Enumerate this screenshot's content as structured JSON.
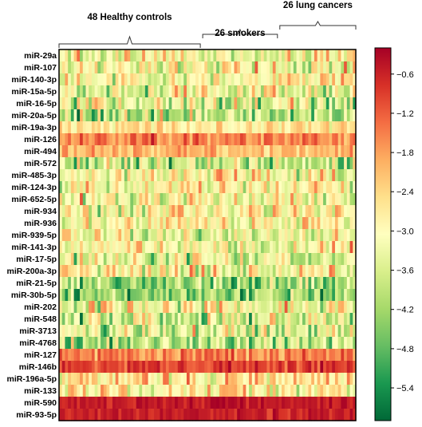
{
  "chart_data": {
    "type": "heatmap",
    "title": "",
    "xlabel": "",
    "ylabel": "",
    "colormap": {
      "name": "RdYlGn (reversed)",
      "colors": [
        "#006837",
        "#1a9850",
        "#66bd63",
        "#a6d96a",
        "#d9ef8b",
        "#ffffbf",
        "#fee08b",
        "#fdae61",
        "#f46d43",
        "#d73027",
        "#a50026"
      ],
      "vmin": -5.9,
      "vmax": -0.2
    },
    "colorbar_ticks": [
      {
        "value": -0.6,
        "label": "−0.6"
      },
      {
        "value": -1.2,
        "label": "−1.2"
      },
      {
        "value": -1.8,
        "label": "−1.8"
      },
      {
        "value": -2.4,
        "label": "−2.4"
      },
      {
        "value": -3.0,
        "label": "−3.0"
      },
      {
        "value": -3.6,
        "label": "−3.6"
      },
      {
        "value": -4.2,
        "label": "−4.2"
      },
      {
        "value": -4.8,
        "label": "−4.8"
      },
      {
        "value": -5.4,
        "label": "−5.4"
      }
    ],
    "groups": [
      {
        "label": "48 Healthy controls",
        "count": 48
      },
      {
        "label": "26 smokers",
        "count": 26
      },
      {
        "label": "26 lung cancers",
        "count": 26
      }
    ],
    "rows": [
      {
        "label": "miR-29a",
        "mean": -3.0,
        "spread": 1.2
      },
      {
        "label": "miR-107",
        "mean": -3.0,
        "spread": 1.1
      },
      {
        "label": "miR-140-3p",
        "mean": -2.9,
        "spread": 1.0
      },
      {
        "label": "miR-15a-5p",
        "mean": -3.1,
        "spread": 1.1
      },
      {
        "label": "miR-16-5p",
        "mean": -3.5,
        "spread": 1.4
      },
      {
        "label": "miR-20a-5p",
        "mean": -3.9,
        "spread": 1.4
      },
      {
        "label": "miR-19a-3p",
        "mean": -2.6,
        "spread": 0.6
      },
      {
        "label": "miR-126",
        "mean": -1.5,
        "spread": 0.6
      },
      {
        "label": "miR-494",
        "mean": -2.0,
        "spread": 0.5
      },
      {
        "label": "miR-572",
        "mean": -3.7,
        "spread": 1.4
      },
      {
        "label": "miR-485-3p",
        "mean": -3.0,
        "spread": 1.1
      },
      {
        "label": "miR-124-3p",
        "mean": -3.0,
        "spread": 1.1
      },
      {
        "label": "miR-652-5p",
        "mean": -3.1,
        "spread": 1.2
      },
      {
        "label": "miR-934",
        "mean": -2.9,
        "spread": 1.1
      },
      {
        "label": "miR-936",
        "mean": -2.9,
        "spread": 1.0
      },
      {
        "label": "miR-939-5p",
        "mean": -3.3,
        "spread": 1.2
      },
      {
        "label": "miR-141-3p",
        "mean": -3.1,
        "spread": 1.1
      },
      {
        "label": "miR-17-5p",
        "mean": -3.3,
        "spread": 1.2
      },
      {
        "label": "miR-200a-3p",
        "mean": -3.0,
        "spread": 1.1
      },
      {
        "label": "miR-21-5p",
        "mean": -4.3,
        "spread": 1.1
      },
      {
        "label": "miR-30b-5p",
        "mean": -4.3,
        "spread": 1.1
      },
      {
        "label": "miR-202",
        "mean": -3.1,
        "spread": 1.2
      },
      {
        "label": "miR-548",
        "mean": -3.6,
        "spread": 1.3
      },
      {
        "label": "miR-3713",
        "mean": -3.5,
        "spread": 1.3
      },
      {
        "label": "miR-4768",
        "mean": -3.9,
        "spread": 1.3
      },
      {
        "label": "miR-127",
        "mean": -1.5,
        "spread": 0.6
      },
      {
        "label": "miR-146b",
        "mean": -0.9,
        "spread": 0.5
      },
      {
        "label": "miR-196a-5p",
        "mean": -2.7,
        "spread": 1.0
      },
      {
        "label": "miR-133",
        "mean": -2.8,
        "spread": 1.0
      },
      {
        "label": "miR-590",
        "mean": -0.5,
        "spread": 0.3
      },
      {
        "label": "miR-93-5p",
        "mean": -0.6,
        "spread": 0.3
      }
    ]
  }
}
